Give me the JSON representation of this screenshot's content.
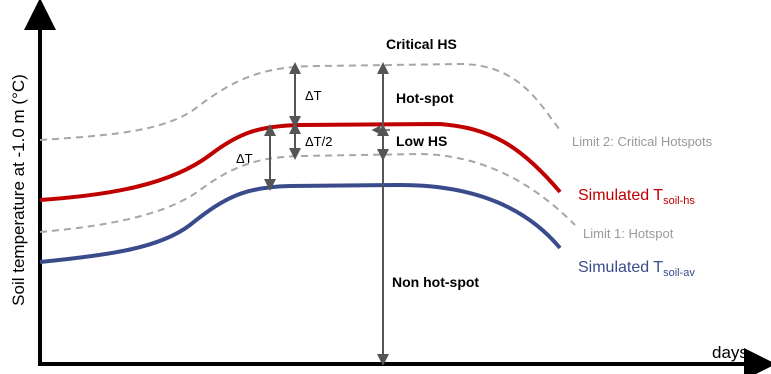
{
  "axes": {
    "ylabel": "Soil temperature at -1.0 m (°C)",
    "xlabel": "days"
  },
  "zones": {
    "critical": "Critical HS",
    "hotspot": "Hot-spot",
    "low": "Low HS",
    "non": "Non hot-spot"
  },
  "deltas": {
    "upper": "ΔT",
    "half": "ΔT/2",
    "lower": "ΔT"
  },
  "limits": {
    "limit2": "Limit 2: Critical Hotspots",
    "limit1": "Limit 1: Hotspot"
  },
  "curves": {
    "hs": {
      "prefix": "Simulated T",
      "subscript": "soil-hs",
      "color": "#c00000"
    },
    "av": {
      "prefix": "Simulated T",
      "subscript": "soil-av",
      "color": "#3a4b8c"
    },
    "limit_color": "#a6a6a6"
  }
}
